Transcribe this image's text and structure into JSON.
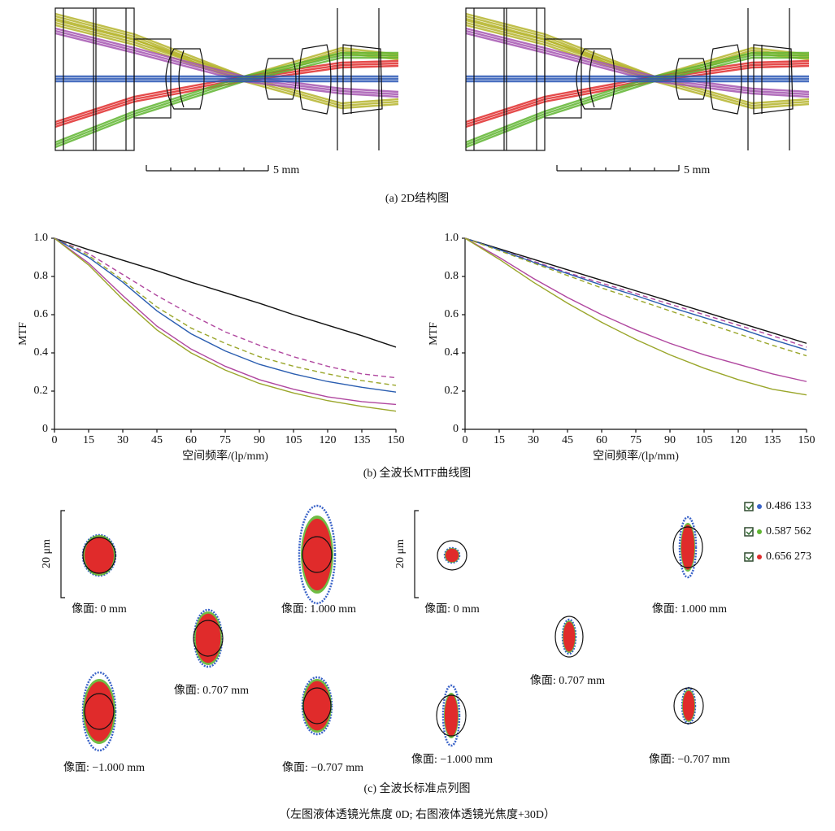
{
  "structure_diagrams": {
    "scale_labels": [
      "5 mm",
      "5 mm"
    ],
    "caption": "(a) 2D结构图"
  },
  "chart_data": [
    {
      "type": "line",
      "xlabel": "空间频率/(lp/mm)",
      "ylabel": "MTF",
      "x": [
        0,
        15,
        30,
        45,
        60,
        75,
        90,
        105,
        120,
        135,
        150
      ],
      "xlim": [
        0,
        150
      ],
      "ylim": [
        0,
        1
      ],
      "xticks": [
        0,
        15,
        30,
        45,
        60,
        75,
        90,
        105,
        120,
        135,
        150
      ],
      "yticks": [
        0,
        0.2,
        0.4,
        0.6,
        0.8,
        {
          "value": 1,
          "label": "1.0"
        }
      ],
      "series": [
        {
          "color": "#111111",
          "dashed": false,
          "values": [
            1,
            0.94,
            0.885,
            0.83,
            0.77,
            0.715,
            0.66,
            0.6,
            0.545,
            0.49,
            0.43
          ]
        },
        {
          "color": "#b0479f",
          "dashed": true,
          "values": [
            1,
            0.92,
            0.81,
            0.7,
            0.6,
            0.51,
            0.44,
            0.38,
            0.33,
            0.29,
            0.27
          ]
        },
        {
          "color": "#9aa62a",
          "dashed": true,
          "values": [
            1,
            0.91,
            0.78,
            0.64,
            0.53,
            0.45,
            0.38,
            0.33,
            0.29,
            0.255,
            0.23
          ]
        },
        {
          "color": "#2a5db0",
          "dashed": false,
          "values": [
            1,
            0.9,
            0.77,
            0.62,
            0.5,
            0.41,
            0.34,
            0.29,
            0.25,
            0.22,
            0.195
          ]
        },
        {
          "color": "#b0479f",
          "dashed": false,
          "values": [
            1,
            0.87,
            0.7,
            0.54,
            0.42,
            0.33,
            0.26,
            0.21,
            0.17,
            0.145,
            0.13
          ]
        },
        {
          "color": "#9aa62a",
          "dashed": false,
          "values": [
            1,
            0.86,
            0.68,
            0.52,
            0.4,
            0.31,
            0.24,
            0.19,
            0.15,
            0.12,
            0.095
          ]
        }
      ]
    },
    {
      "type": "line",
      "xlabel": "空间频率/(lp/mm)",
      "ylabel": "MTF",
      "x": [
        0,
        15,
        30,
        45,
        60,
        75,
        90,
        105,
        120,
        135,
        150
      ],
      "xlim": [
        0,
        150
      ],
      "ylim": [
        0,
        1
      ],
      "xticks": [
        0,
        15,
        30,
        45,
        60,
        75,
        90,
        105,
        120,
        135,
        150
      ],
      "yticks": [
        0,
        0.2,
        0.4,
        0.6,
        0.8,
        {
          "value": 1,
          "label": "1.0"
        }
      ],
      "series": [
        {
          "color": "#111111",
          "dashed": false,
          "values": [
            1,
            0.945,
            0.89,
            0.835,
            0.78,
            0.725,
            0.67,
            0.615,
            0.56,
            0.505,
            0.45
          ]
        },
        {
          "color": "#b0479f",
          "dashed": true,
          "values": [
            1,
            0.94,
            0.88,
            0.82,
            0.765,
            0.71,
            0.655,
            0.6,
            0.545,
            0.49,
            0.43
          ]
        },
        {
          "color": "#2a5db0",
          "dashed": false,
          "values": [
            1,
            0.94,
            0.875,
            0.815,
            0.755,
            0.7,
            0.64,
            0.585,
            0.53,
            0.47,
            0.415
          ]
        },
        {
          "color": "#9aa62a",
          "dashed": true,
          "values": [
            1,
            0.935,
            0.87,
            0.805,
            0.74,
            0.68,
            0.62,
            0.56,
            0.5,
            0.44,
            0.385
          ]
        },
        {
          "color": "#b0479f",
          "dashed": false,
          "values": [
            1,
            0.9,
            0.79,
            0.69,
            0.6,
            0.52,
            0.45,
            0.39,
            0.34,
            0.29,
            0.25
          ]
        },
        {
          "color": "#9aa62a",
          "dashed": false,
          "values": [
            1,
            0.89,
            0.77,
            0.66,
            0.56,
            0.47,
            0.39,
            0.32,
            0.26,
            0.21,
            0.18
          ]
        }
      ]
    }
  ],
  "mtf_caption": "(b) 全波长MTF曲线图",
  "spot_diagrams": {
    "panels": [
      {
        "scale_label": "20 μm",
        "fields": [
          {
            "label": "像面: 0 mm"
          },
          {
            "label": "像面: 1.000 mm"
          },
          {
            "label": "像面: 0.707 mm"
          },
          {
            "label": "像面: −1.000 mm"
          },
          {
            "label": "像面: −0.707 mm"
          }
        ]
      },
      {
        "scale_label": "20 μm",
        "fields": [
          {
            "label": "像面: 0 mm"
          },
          {
            "label": "像面: 1.000 mm"
          },
          {
            "label": "像面: 0.707 mm"
          },
          {
            "label": "像面: −1.000 mm"
          },
          {
            "label": "像面: −0.707 mm"
          }
        ]
      }
    ],
    "legend": [
      {
        "label": "0.486 133",
        "color": "#3a63c8"
      },
      {
        "label": "0.587 562",
        "color": "#5fb530"
      },
      {
        "label": "0.656 273",
        "color": "#e02b2b"
      }
    ],
    "caption": "(c) 全波长标准点列图"
  },
  "figure_note": "（左图液体透镜光焦度 0D; 右图液体透镜光焦度+30D）"
}
